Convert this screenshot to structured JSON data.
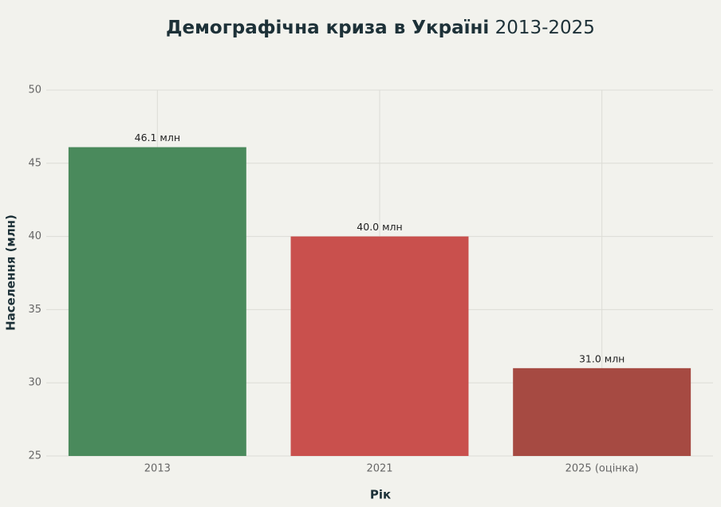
{
  "chart_data": {
    "type": "bar",
    "title": [
      "Демографічна криза в Україні",
      "2013-2025"
    ],
    "x_label": "Рік",
    "y_label": "Населення (млн)",
    "categories": [
      "2013",
      "2021",
      "2025 (оцінка)"
    ],
    "values": [
      46.1,
      40.0,
      31.0
    ],
    "value_labels": [
      "46.1 млн",
      "40.0 млн",
      "31.0 млн"
    ],
    "colors": [
      "#4a8a5c",
      "#c9504d",
      "#a64a42"
    ],
    "ylim": [
      25,
      50
    ],
    "yticks": [
      25,
      30,
      35,
      40,
      45,
      50
    ],
    "grid": true
  }
}
